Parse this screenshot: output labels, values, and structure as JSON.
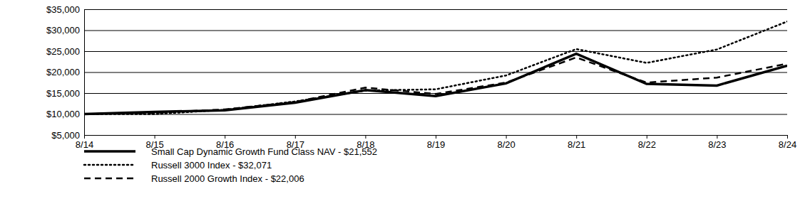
{
  "chart_data": {
    "type": "line",
    "categories": [
      "8/14",
      "8/15",
      "8/16",
      "8/17",
      "8/18",
      "8/19",
      "8/20",
      "8/21",
      "8/22",
      "8/23",
      "8/24"
    ],
    "series": [
      {
        "name": "Small Cap Dynamic Growth Fund Class NAV - $21,552",
        "color": "#000000",
        "line_style": "solid",
        "values": [
          10000,
          10500,
          10900,
          12700,
          15700,
          14300,
          17300,
          24400,
          17200,
          16800,
          21552
        ]
      },
      {
        "name": "Russell 3000 Index - $32,071",
        "color": "#000000",
        "line_style": "dotted",
        "values": [
          10000,
          10000,
          11000,
          13000,
          15600,
          15900,
          19200,
          25500,
          22200,
          25400,
          32071
        ]
      },
      {
        "name": "Russell 2000 Growth Index - $22,006",
        "color": "#000000",
        "line_style": "dashed",
        "values": [
          10000,
          10300,
          11100,
          12900,
          16300,
          14800,
          17500,
          23500,
          17500,
          18700,
          22006
        ]
      }
    ],
    "ylim": [
      5000,
      35000
    ],
    "yticks": [
      {
        "value": 5000,
        "label": "$5,000"
      },
      {
        "value": 10000,
        "label": "$10,000"
      },
      {
        "value": 15000,
        "label": "$15,000"
      },
      {
        "value": 20000,
        "label": "$20,000"
      },
      {
        "value": 25000,
        "label": "$25,000"
      },
      {
        "value": 30000,
        "label": "$30,000"
      },
      {
        "value": 35000,
        "label": "$35,000"
      }
    ],
    "grid": true,
    "legend": "bottom"
  }
}
